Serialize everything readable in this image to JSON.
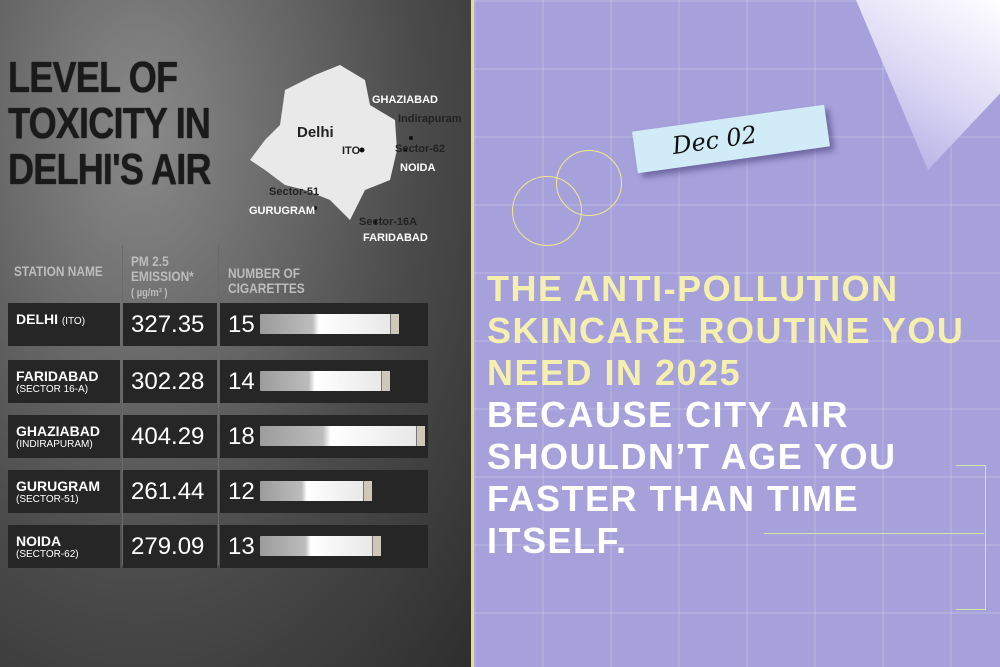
{
  "infographic": {
    "title_lines": [
      "LEVEL OF",
      "TOXICITY IN",
      "DELHI'S AIR"
    ],
    "map_labels": {
      "delhi": "Delhi",
      "ito": "ITO",
      "ghaziabad": "GHAZIABAD",
      "indirapuram": "Indirapuram",
      "sector62": "Sector-62",
      "noida": "NOIDA",
      "sector51": "Sector-51",
      "gurugram": "GURUGRAM",
      "sector16a": "Sector-16A",
      "faridabad": "FARIDABAD"
    },
    "headers": {
      "station": "STATION NAME",
      "pm": "PM 2.5 EMISSION*",
      "unit": "( µg/m³ )",
      "cigs": "NUMBER OF CIGARETTES"
    },
    "rows": [
      {
        "name": "DELHI",
        "sub": "(ITO)",
        "pm": "327.35",
        "cigarettes": 15
      },
      {
        "name": "FARIDABAD",
        "sub": "(SECTOR 16-A)",
        "pm": "302.28",
        "cigarettes": 14
      },
      {
        "name": "GHAZIABAD",
        "sub": "(INDIRAPURAM)",
        "pm": "404.29",
        "cigarettes": 18
      },
      {
        "name": "GURUGRAM",
        "sub": "(SECTOR-51)",
        "pm": "261.44",
        "cigarettes": 12
      },
      {
        "name": "NOIDA",
        "sub": "(SECTOR-62)",
        "pm": "279.09",
        "cigarettes": 13
      }
    ]
  },
  "banner": {
    "date": "Dec  02",
    "headline_yellow": [
      "THE ANTI-POLLUTION",
      "SKINCARE ROUTINE YOU",
      "NEED IN 2025"
    ],
    "headline_white": [
      "BECAUSE CITY AIR",
      "SHOULDN’T AGE YOU",
      "FASTER THAN TIME ITSELF."
    ],
    "colors": {
      "background": "#a6a1da",
      "accent_yellow": "#f6f0ae",
      "note": "#d2ecf7"
    }
  }
}
